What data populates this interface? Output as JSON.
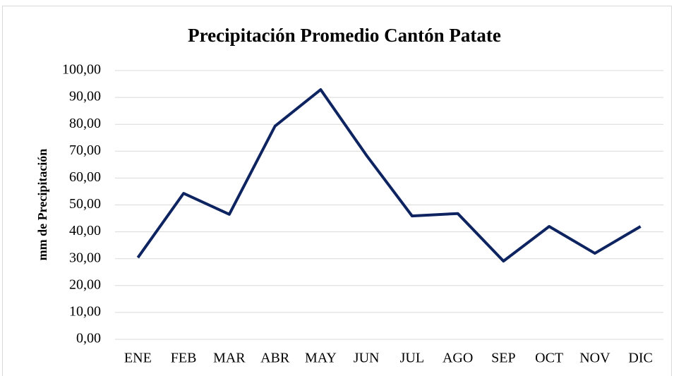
{
  "chart_data": {
    "type": "line",
    "title": "Precipitación Promedio Cantón Patate",
    "y_label": "mm de Precipitación",
    "categories": [
      "ENE",
      "FEB",
      "MAR",
      "ABR",
      "MAY",
      "JUN",
      "JUL",
      "AGO",
      "SEP",
      "OCT",
      "NOV",
      "DIC"
    ],
    "series": [
      {
        "name": "Precipitación",
        "color": "#0e2461",
        "values": [
          30.4,
          54.3,
          46.5,
          79.3,
          92.9,
          68.5,
          45.9,
          46.8,
          29.1,
          42.0,
          32.0,
          42.0
        ]
      }
    ],
    "ylim": [
      0,
      100
    ],
    "yticks": [
      {
        "value": 0,
        "label": "0,00"
      },
      {
        "value": 10,
        "label": "10,00"
      },
      {
        "value": 20,
        "label": "20,00"
      },
      {
        "value": 30,
        "label": "30,00"
      },
      {
        "value": 40,
        "label": "40,00"
      },
      {
        "value": 50,
        "label": "50,00"
      },
      {
        "value": 60,
        "label": "60,00"
      },
      {
        "value": 70,
        "label": "70,00"
      },
      {
        "value": 80,
        "label": "80,00"
      },
      {
        "value": 90,
        "label": "90,00"
      },
      {
        "value": 100,
        "label": "100,00"
      }
    ],
    "grid": true
  }
}
